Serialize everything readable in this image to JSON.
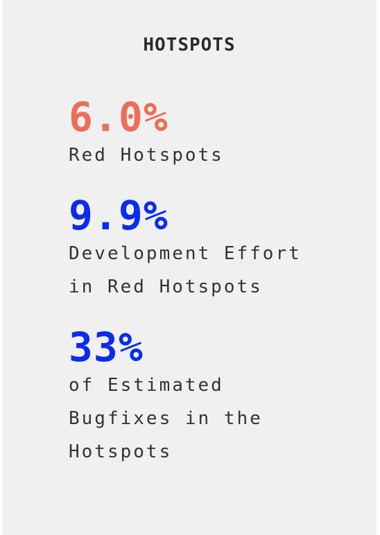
{
  "title": "HOTSPOTS",
  "colors": {
    "red_accent": "#ee6e55",
    "blue_accent": "#0a2cf0"
  },
  "metrics": [
    {
      "value": "6.0%",
      "label_lines": [
        "Red Hotspots"
      ],
      "color": "#ee6e55"
    },
    {
      "value": "9.9%",
      "label_lines": [
        "Development Effort",
        "in Red Hotspots"
      ],
      "color": "#0a2cf0"
    },
    {
      "value": "33%",
      "label_lines": [
        "of Estimated",
        "Bugfixes in the",
        "Hotspots"
      ],
      "color": "#0a2cf0"
    }
  ]
}
